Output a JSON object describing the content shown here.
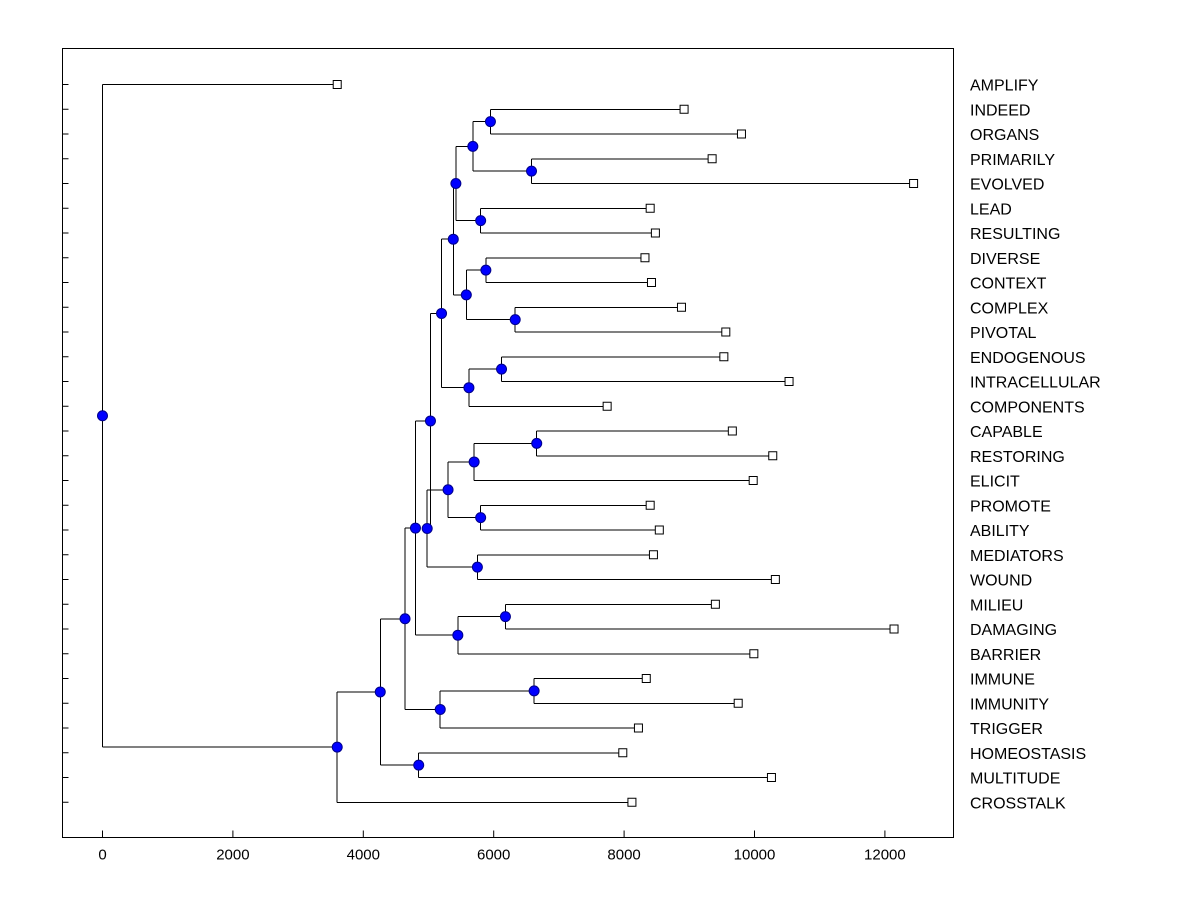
{
  "chart_data": {
    "type": "dendrogram",
    "title": "",
    "xlabel": "",
    "ylabel": "",
    "xlim": [
      -600,
      13000
    ],
    "xticks": [
      0,
      2000,
      4000,
      6000,
      8000,
      10000,
      12000
    ],
    "xtick_labels": [
      "0",
      "2000",
      "4000",
      "6000",
      "8000",
      "10000",
      "12000"
    ],
    "grid": false,
    "leaves": [
      {
        "label": "AMPLIFY",
        "value": 3600
      },
      {
        "label": "INDEED",
        "value": 8920
      },
      {
        "label": "ORGANS",
        "value": 9800
      },
      {
        "label": "PRIMARILY",
        "value": 9350
      },
      {
        "label": "EVOLVED",
        "value": 12440
      },
      {
        "label": "LEAD",
        "value": 8400
      },
      {
        "label": "RESULTING",
        "value": 8480
      },
      {
        "label": "DIVERSE",
        "value": 8320
      },
      {
        "label": "CONTEXT",
        "value": 8420
      },
      {
        "label": "COMPLEX",
        "value": 8880
      },
      {
        "label": "PIVOTAL",
        "value": 9560
      },
      {
        "label": "ENDOGENOUS",
        "value": 9530
      },
      {
        "label": "INTRACELLULAR",
        "value": 10530
      },
      {
        "label": "COMPONENTS",
        "value": 7740
      },
      {
        "label": "CAPABLE",
        "value": 9660
      },
      {
        "label": "RESTORING",
        "value": 10280
      },
      {
        "label": "ELICIT",
        "value": 9980
      },
      {
        "label": "PROMOTE",
        "value": 8400
      },
      {
        "label": "ABILITY",
        "value": 8540
      },
      {
        "label": "MEDIATORS",
        "value": 8450
      },
      {
        "label": "WOUND",
        "value": 10320
      },
      {
        "label": "MILIEU",
        "value": 9400
      },
      {
        "label": "DAMAGING",
        "value": 12140
      },
      {
        "label": "BARRIER",
        "value": 9990
      },
      {
        "label": "IMMUNE",
        "value": 8340
      },
      {
        "label": "IMMUNITY",
        "value": 9750
      },
      {
        "label": "TRIGGER",
        "value": 8220
      },
      {
        "label": "HOMEOSTASIS",
        "value": 7980
      },
      {
        "label": "MULTITUDE",
        "value": 10260
      },
      {
        "label": "CROSSTALK",
        "value": 8120
      }
    ],
    "merges": [
      {
        "id": "n_io",
        "height": 5950,
        "children": [
          "L1",
          "L2"
        ]
      },
      {
        "id": "n_pe",
        "height": 6580,
        "children": [
          "L3",
          "L4"
        ]
      },
      {
        "id": "n_iope",
        "height": 5680,
        "children": [
          "n_io",
          "n_pe"
        ]
      },
      {
        "id": "n_lr",
        "height": 5800,
        "children": [
          "L5",
          "L6"
        ]
      },
      {
        "id": "n_a",
        "height": 5420,
        "children": [
          "n_iope",
          "n_lr"
        ]
      },
      {
        "id": "n_dc",
        "height": 5880,
        "children": [
          "L7",
          "L8"
        ]
      },
      {
        "id": "n_cp",
        "height": 6330,
        "children": [
          "L9",
          "L10"
        ]
      },
      {
        "id": "n_dccp",
        "height": 5580,
        "children": [
          "n_dc",
          "n_cp"
        ]
      },
      {
        "id": "n_b",
        "height": 5380,
        "children": [
          "n_a",
          "n_dccp"
        ]
      },
      {
        "id": "n_ei",
        "height": 6120,
        "children": [
          "L11",
          "L12"
        ]
      },
      {
        "id": "n_eic",
        "height": 5620,
        "children": [
          "n_ei",
          "L13"
        ]
      },
      {
        "id": "n_c",
        "height": 5200,
        "children": [
          "n_b",
          "n_eic"
        ]
      },
      {
        "id": "n_cr",
        "height": 6660,
        "children": [
          "L14",
          "L15"
        ]
      },
      {
        "id": "n_cre",
        "height": 5700,
        "children": [
          "n_cr",
          "L16"
        ]
      },
      {
        "id": "n_pa",
        "height": 5800,
        "children": [
          "L17",
          "L18"
        ]
      },
      {
        "id": "n_crepa",
        "height": 5300,
        "children": [
          "n_cre",
          "n_pa"
        ]
      },
      {
        "id": "n_mw",
        "height": 5750,
        "children": [
          "L19",
          "L20"
        ]
      },
      {
        "id": "n_d",
        "height": 4980,
        "children": [
          "n_crepa",
          "n_mw"
        ]
      },
      {
        "id": "n_e",
        "height": 5030,
        "children": [
          "n_c",
          "n_d"
        ]
      },
      {
        "id": "n_md",
        "height": 6180,
        "children": [
          "L21",
          "L22"
        ]
      },
      {
        "id": "n_mdb",
        "height": 5450,
        "children": [
          "n_md",
          "L23"
        ]
      },
      {
        "id": "n_f",
        "height": 4800,
        "children": [
          "n_e",
          "n_mdb"
        ]
      },
      {
        "id": "n_ii",
        "height": 6620,
        "children": [
          "L24",
          "L25"
        ]
      },
      {
        "id": "n_iit",
        "height": 5180,
        "children": [
          "n_ii",
          "L26"
        ]
      },
      {
        "id": "n_g",
        "height": 4640,
        "children": [
          "n_f",
          "n_iit"
        ]
      },
      {
        "id": "n_hm",
        "height": 4850,
        "children": [
          "L27",
          "L28"
        ]
      },
      {
        "id": "n_h",
        "height": 4260,
        "children": [
          "n_g",
          "n_hm"
        ]
      },
      {
        "id": "n_i",
        "height": 3600,
        "children": [
          "n_h",
          "L29"
        ]
      },
      {
        "id": "n_root",
        "height": 0,
        "children": [
          "L0",
          "n_i"
        ]
      }
    ],
    "colors": {
      "node_fill": "#0000ff",
      "node_stroke": "#00008b",
      "leaf_fill": "#ffffff",
      "line": "#000000"
    },
    "node_marker": "filled-circle",
    "leaf_marker": "open-square",
    "orientation": "leaves-right"
  }
}
